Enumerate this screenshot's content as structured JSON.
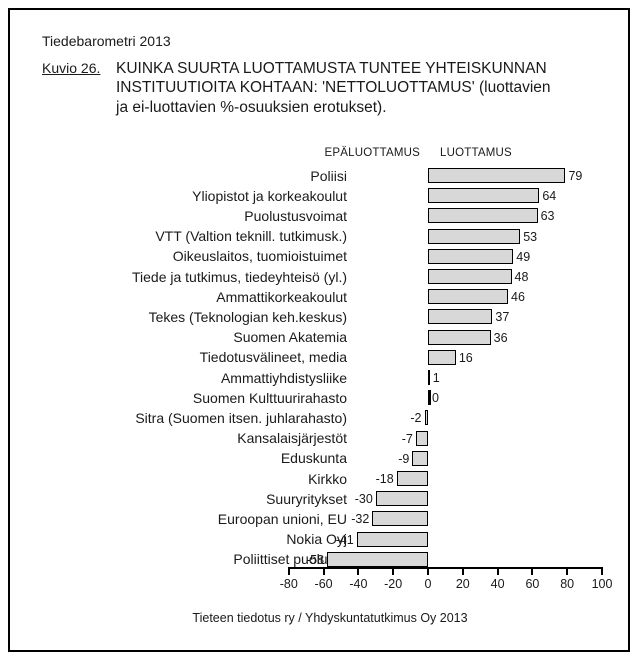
{
  "document": {
    "brand": "Tiedebarometri 2013",
    "figure_label": "Kuvio 26.",
    "title": "KUINKA SUURTA LUOTTAMUSTA TUNTEE YHTEISKUNNAN\nINSTITUUTIOITA KOHTAAN: 'NETTOLUOTTAMUS' (luottavien\nja ei-luottavien %-osuuksien erotukset).",
    "footer": "Tieteen tiedotus ry / Yhdyskuntatutkimus Oy 2013"
  },
  "chart_data": {
    "type": "bar",
    "orientation": "horizontal",
    "title": "KUINKA SUURTA LUOTTAMUSTA TUNTEE YHTEISKUNNAN INSTITUUTIOITA KOHTAAN: 'NETTOLUOTTAMUS' (luottavien ja ei-luottavien %-osuuksien erotukset).",
    "negative_header": "EPÄLUOTTAMUS",
    "positive_header": "LUOTTAMUS",
    "categories": [
      "Poliisi",
      "Yliopistot ja korkeakoulut",
      "Puolustusvoimat",
      "VTT (Valtion teknill. tutkimusk.)",
      "Oikeuslaitos, tuomioistuimet",
      "Tiede ja tutkimus, tiedeyhteisö (yl.)",
      "Ammattikorkeakoulut",
      "Tekes (Teknologian keh.keskus)",
      "Suomen Akatemia",
      "Tiedotusvälineet, media",
      "Ammattiyhdistysliike",
      "Suomen Kulttuurirahasto",
      "Sitra (Suomen itsen. juhlarahasto)",
      "Kansalaisjärjestöt",
      "Eduskunta",
      "Kirkko",
      "Suuryritykset",
      "Euroopan unioni, EU",
      "Nokia Oyj",
      "Poliittiset puolueet"
    ],
    "values": [
      79,
      64,
      63,
      53,
      49,
      48,
      46,
      37,
      36,
      16,
      1,
      0,
      -2,
      -7,
      -9,
      -18,
      -30,
      -32,
      -41,
      -58
    ],
    "x_ticks": [
      -80,
      -60,
      -40,
      -20,
      0,
      20,
      40,
      60,
      80,
      100
    ],
    "xlim": [
      -80,
      100
    ],
    "grid": false,
    "legend": false,
    "bar_fill": "#d8d8d8",
    "bar_border": "#000000",
    "source_note": "Tieteen tiedotus ry / Yhdyskuntatutkimus Oy 2013"
  }
}
